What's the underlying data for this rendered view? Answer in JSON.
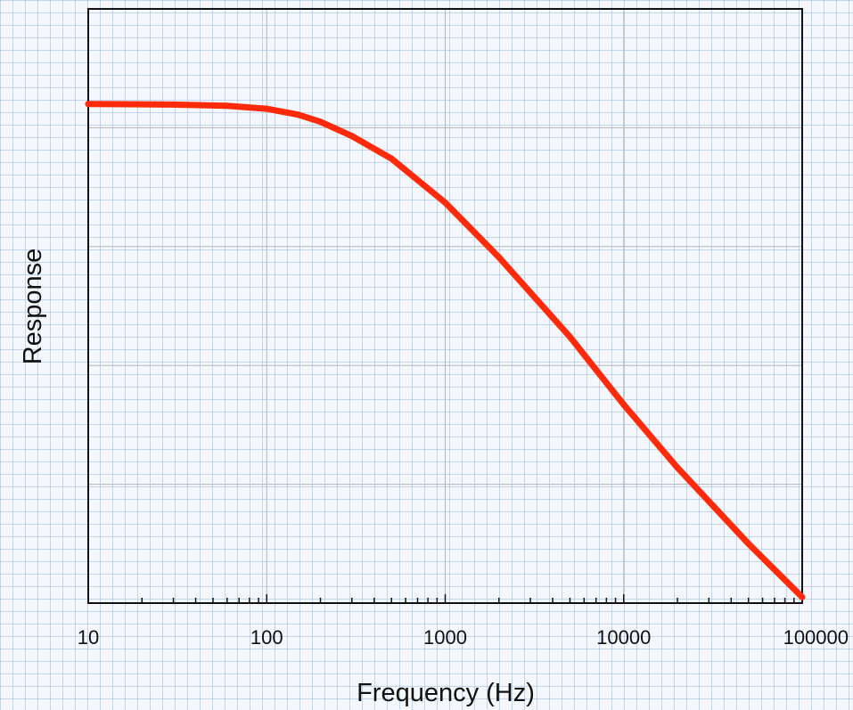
{
  "chart_data": {
    "type": "line",
    "xlabel": "Frequency (Hz)",
    "ylabel": "Response",
    "xscale": "log",
    "xlim": [
      10,
      100000
    ],
    "x_ticks": [
      "10",
      "100",
      "1000",
      "10000",
      "100000"
    ],
    "ylim": [
      -42,
      8
    ],
    "y_tick_labels_shown": false,
    "grid": true,
    "series": [
      {
        "color": "#ff2a0a",
        "x": [
          10,
          30,
          60,
          100,
          150,
          200,
          300,
          500,
          1000,
          2000,
          5000,
          10000,
          20000,
          50000,
          100000
        ],
        "y": [
          0,
          -0.05,
          -0.15,
          -0.4,
          -0.9,
          -1.5,
          -2.7,
          -4.6,
          -8.3,
          -12.9,
          -19.6,
          -25.3,
          -30.6,
          -37.0,
          -41.5
        ]
      }
    ]
  }
}
